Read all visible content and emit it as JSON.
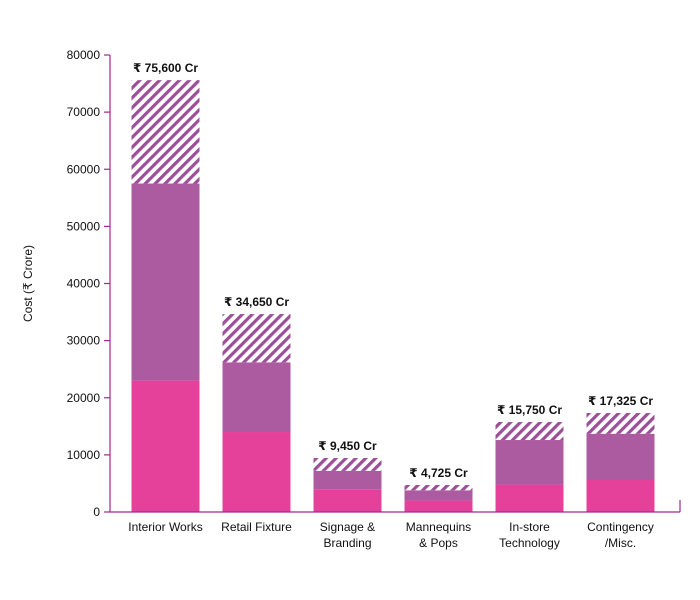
{
  "chart_data": {
    "type": "bar",
    "stacked": true,
    "ylabel": "Cost (₹ Crore)",
    "ylim": [
      0,
      80000
    ],
    "yticks": [
      0,
      10000,
      20000,
      30000,
      40000,
      50000,
      60000,
      70000,
      80000
    ],
    "grid": false,
    "categories": [
      [
        "Interior Works"
      ],
      [
        "Retail Fixture"
      ],
      [
        "Signage &",
        "Branding"
      ],
      [
        "Mannequins",
        "& Pops"
      ],
      [
        "In-store",
        "Technology"
      ],
      [
        "Contingency",
        "/Misc."
      ]
    ],
    "series": [
      {
        "values": [
          23000,
          14000,
          3900,
          2000,
          4800,
          5600
        ]
      },
      {
        "values": [
          34500,
          12200,
          3300,
          1800,
          7800,
          8100
        ]
      },
      {
        "values": [
          18100,
          8450,
          2250,
          925,
          3150,
          3625
        ]
      }
    ],
    "totals": [
      "₹ 75,600 Cr",
      "₹ 34,650 Cr",
      "₹ 9,450 Cr",
      "₹ 4,725 Cr",
      "₹ 15,750 Cr",
      "₹ 17,325 Cr"
    ],
    "colors": {
      "bottom": "#e5409a",
      "middle": "#ad5ba1",
      "hatch": "#9c4f98",
      "axis": "#9c2a8e"
    }
  }
}
